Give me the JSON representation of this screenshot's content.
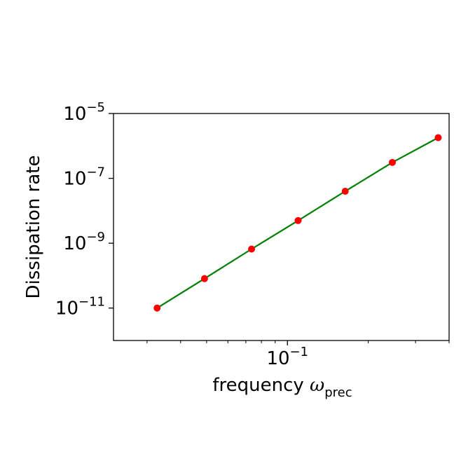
{
  "chart_data": {
    "type": "line",
    "xlabel": "frequency",
    "xlabel_symbol": "ω",
    "xlabel_subscript": "prec",
    "ylabel": "Dissipation rate",
    "xscale": "log",
    "yscale": "log",
    "xlim": [
      0.0225,
      0.4
    ],
    "ylim": [
      1e-12,
      1e-05
    ],
    "x_major_ticks": [
      {
        "base": "10",
        "exp": "−1",
        "value": 0.1
      }
    ],
    "y_major_ticks": [
      {
        "base": "10",
        "exp": "−5",
        "value": 1e-05
      },
      {
        "base": "10",
        "exp": "−7",
        "value": 1e-07
      },
      {
        "base": "10",
        "exp": "−9",
        "value": 1e-09
      },
      {
        "base": "10",
        "exp": "−11",
        "value": 1e-11
      }
    ],
    "x_minor_ticks": [
      0.03,
      0.04,
      0.05,
      0.06,
      0.07,
      0.08,
      0.09,
      0.2,
      0.3,
      0.4
    ],
    "series": [
      {
        "line_color": "#008000",
        "marker_color": "#ff0000",
        "x": [
          0.0327,
          0.0491,
          0.0735,
          0.1096,
          0.1641,
          0.2459,
          0.3643
        ],
        "y": [
          1e-11,
          8.1e-11,
          6.6e-10,
          5e-09,
          4e-08,
          3.1e-07,
          1.8e-06
        ]
      }
    ],
    "grid": false,
    "legend": "none"
  }
}
